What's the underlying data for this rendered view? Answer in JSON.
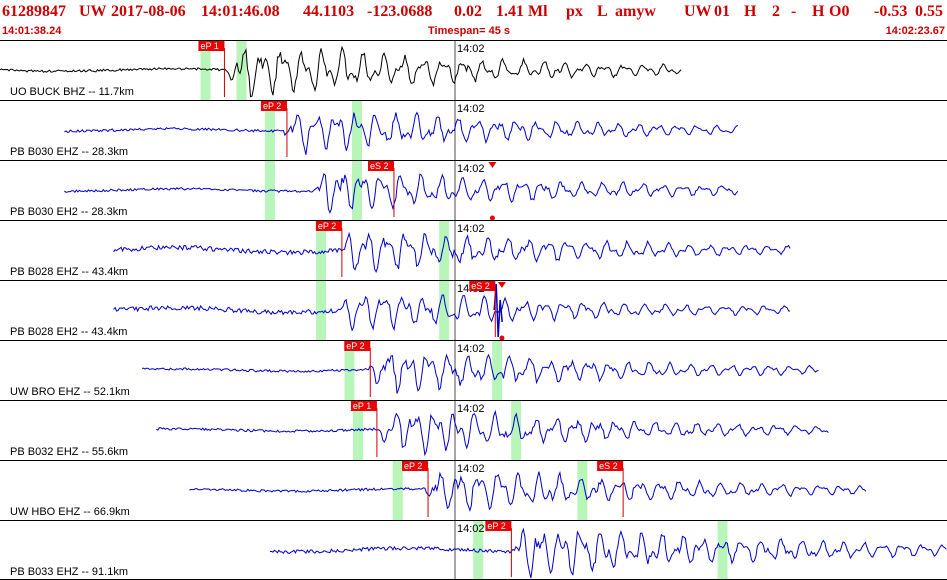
{
  "header": {
    "event_id": "61289847",
    "network": "UW",
    "date": "2017-08-06",
    "time": "14:01:46.08",
    "lat": "44.1103",
    "lon": "-123.0688",
    "depth": "0.02",
    "magnitude": "1.41 Ml",
    "type": "px",
    "state": "L",
    "user": "amyw",
    "net2": "UW",
    "field1": "01",
    "field2": "H",
    "field3": "2",
    "field4": "-",
    "field5": "H",
    "field6": "O0",
    "val1": "-0.53",
    "val2": "0.55",
    "start_time": "14:01:38.24",
    "timespan": "Timespan=  45 s",
    "end_time": "14:02:23.67"
  },
  "colors": {
    "header_text": "#cc0000",
    "trace_first": "#000000",
    "trace": "#0000cc",
    "pick_flag": "#ee0000",
    "pick_line": "#cc0000",
    "window": "#b8f5b8",
    "divider": "#000000"
  },
  "timeline": {
    "start": "14:01:38.24",
    "end": "14:02:23.67",
    "tick_label": "14:02"
  },
  "traces": [
    {
      "label": "UO BUCK BHZ -- 11.7km",
      "color": "trace_first",
      "data_start": 0.0,
      "data_end": 0.72,
      "onset": 0.24,
      "amp": 0.55,
      "noise": 0.02,
      "picks": [
        {
          "label": "eP 1",
          "pos": 0.237
        }
      ],
      "windows": [
        0.217,
        0.255
      ]
    },
    {
      "label": "PB B030 EHZ -- 28.3km",
      "color": "trace",
      "data_start": 0.068,
      "data_end": 0.78,
      "onset": 0.3,
      "amp": 0.45,
      "noise": 0.02,
      "picks": [
        {
          "label": "eP 2",
          "pos": 0.303
        }
      ],
      "windows": [
        0.285,
        0.377
      ]
    },
    {
      "label": "PB B030 EH2 -- 28.3km",
      "color": "trace",
      "data_start": 0.068,
      "data_end": 0.78,
      "onset": 0.33,
      "amp": 0.45,
      "noise": 0.02,
      "picks": [
        {
          "label": "eS 2",
          "pos": 0.416
        }
      ],
      "windows": [
        0.285,
        0.377
      ],
      "marker": 0.52
    },
    {
      "label": "PB B028 EHZ -- 43.4km",
      "color": "trace",
      "data_start": 0.12,
      "data_end": 0.835,
      "onset": 0.36,
      "amp": 0.45,
      "noise": 0.04,
      "picks": [
        {
          "label": "eP 2",
          "pos": 0.361
        }
      ],
      "windows": [
        0.339,
        0.469
      ]
    },
    {
      "label": "PB B028 EH2 -- 43.4km",
      "color": "trace",
      "data_start": 0.12,
      "data_end": 0.835,
      "onset": 0.36,
      "amp": 0.4,
      "noise": 0.04,
      "picks": [
        {
          "label": "eS 2",
          "pos": 0.523
        }
      ],
      "windows": [
        0.339,
        0.469
      ],
      "marker": 0.53,
      "spike": 0.525
    },
    {
      "label": "UW BRO EHZ -- 52.1km",
      "color": "trace",
      "data_start": 0.15,
      "data_end": 0.865,
      "onset": 0.39,
      "amp": 0.45,
      "noise": 0.02,
      "picks": [
        {
          "label": "eP 2",
          "pos": 0.391
        }
      ],
      "windows": [
        0.369,
        0.525
      ]
    },
    {
      "label": "PB B032 EHZ -- 55.6km",
      "color": "trace",
      "data_start": 0.165,
      "data_end": 0.875,
      "onset": 0.4,
      "amp": 0.45,
      "noise": 0.02,
      "picks": [
        {
          "label": "eP 1",
          "pos": 0.398
        }
      ],
      "windows": [
        0.378,
        0.545
      ]
    },
    {
      "label": "UW HBO EHZ -- 66.9km",
      "color": "trace",
      "data_start": 0.2,
      "data_end": 0.915,
      "onset": 0.45,
      "amp": 0.45,
      "noise": 0.02,
      "picks": [
        {
          "label": "eP 2",
          "pos": 0.452
        },
        {
          "label": "eS 2",
          "pos": 0.658
        }
      ],
      "windows": [
        0.42,
        0.615
      ]
    },
    {
      "label": "PB B033 EHZ -- 91.1km",
      "color": "trace",
      "data_start": 0.285,
      "data_end": 1.0,
      "onset": 0.54,
      "amp": 0.55,
      "noise": 0.03,
      "picks": [
        {
          "label": "eP 2",
          "pos": 0.54
        }
      ],
      "windows": [
        0.505,
        0.763
      ]
    }
  ]
}
